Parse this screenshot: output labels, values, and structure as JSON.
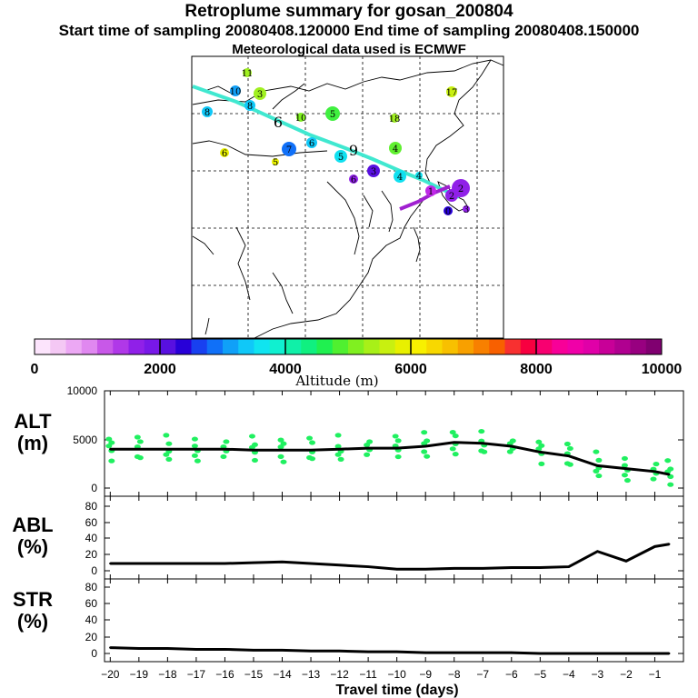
{
  "header": {
    "title": "Retroplume summary for gosan_200804",
    "sampling": "Start time of sampling 20080408.120000     End time of sampling 20080408.150000",
    "met": "Meteorological data used is ECMWF"
  },
  "colorbar": {
    "label": "Altitude (m)",
    "ticks": [
      "0",
      "2000",
      "4000",
      "6000",
      "8000",
      "10000"
    ],
    "colors": [
      "#fce4fc",
      "#f4c8f4",
      "#eca8f4",
      "#e088f0",
      "#c858e8",
      "#b038e8",
      "#9020e8",
      "#7818e8",
      "#5810e0",
      "#2800d8",
      "#1840f0",
      "#1070f8",
      "#10a0f8",
      "#10c8f8",
      "#10e4f0",
      "#10f0d0",
      "#10f0a8",
      "#10f080",
      "#20f050",
      "#50f030",
      "#80f020",
      "#a8f018",
      "#c8f010",
      "#e8f000",
      "#f8f000",
      "#f8d800",
      "#f8c000",
      "#f8a000",
      "#f88000",
      "#f86000",
      "#f83030",
      "#f80040",
      "#f80070",
      "#f80098",
      "#f000a8",
      "#e000a8",
      "#c80098",
      "#b00090",
      "#980080",
      "#800070"
    ]
  },
  "map": {
    "labels": [
      {
        "text": "11",
        "color": "#a0f020"
      },
      {
        "text": "10",
        "color": "#10a0f8"
      },
      {
        "text": "3",
        "color": "#a0f020"
      },
      {
        "text": "8",
        "color": "#10c8f8"
      },
      {
        "text": "8",
        "color": "#10c8f8"
      },
      {
        "text": "6",
        "color": "#000000"
      },
      {
        "text": "10",
        "color": "#80f020"
      },
      {
        "text": "5",
        "color": "#40f040"
      },
      {
        "text": "18",
        "color": "#a0f020"
      },
      {
        "text": "17",
        "color": "#c8f010"
      },
      {
        "text": "6",
        "color": "#e8f000"
      },
      {
        "text": "7",
        "color": "#1070f8"
      },
      {
        "text": "6",
        "color": "#10c8f8"
      },
      {
        "text": "5",
        "color": "#e8f000"
      },
      {
        "text": "5",
        "color": "#10e0f0"
      },
      {
        "text": "9",
        "color": "#000000"
      },
      {
        "text": "4",
        "color": "#60f030"
      },
      {
        "text": "3",
        "color": "#5810e0"
      },
      {
        "text": "4",
        "color": "#10e0f0"
      },
      {
        "text": "4",
        "color": "#10e0f0"
      },
      {
        "text": "2",
        "color": "#9020e8"
      },
      {
        "text": "6",
        "color": "#9020e8"
      },
      {
        "text": "1",
        "color": "#c028e8"
      },
      {
        "text": "2",
        "color": "#9020e8"
      },
      {
        "text": "3",
        "color": "#9020e8"
      },
      {
        "text": "0",
        "color": "#2800d8"
      }
    ]
  },
  "chart_data": [
    {
      "type": "line",
      "name": "altitude",
      "ylabel": "ALT (m)",
      "ylabel_line1": "ALT",
      "ylabel_line2": "(m)",
      "ylim": [
        0,
        10000
      ],
      "yticks": [
        "10000",
        "5000",
        "0"
      ],
      "x": [
        -20,
        -19,
        -18,
        -17,
        -16,
        -15,
        -14,
        -13,
        -12,
        -11,
        -10,
        -9,
        -8,
        -7,
        -6,
        -5,
        -4,
        -3,
        -2,
        -1,
        -0.5
      ],
      "values": [
        4000,
        4000,
        4000,
        4000,
        4000,
        3900,
        3900,
        3900,
        4000,
        4100,
        4100,
        4300,
        4700,
        4600,
        4300,
        3700,
        3300,
        2300,
        2000,
        1700,
        1400
      ]
    },
    {
      "type": "line",
      "name": "abl",
      "ylabel": "ABL (%)",
      "ylabel_line1": "ABL",
      "ylabel_line2": "(%)",
      "ylim": [
        0,
        90
      ],
      "yticks": [
        "80",
        "60",
        "40",
        "20",
        "0"
      ],
      "x": [
        -20,
        -19,
        -18,
        -17,
        -16,
        -15,
        -14,
        -13,
        -12,
        -11,
        -10,
        -9,
        -8,
        -7,
        -6,
        -5,
        -4,
        -3,
        -2,
        -1,
        -0.5
      ],
      "values": [
        9,
        9,
        9,
        9,
        9,
        10,
        11,
        9,
        7,
        5,
        2,
        2,
        3,
        3,
        4,
        4,
        5,
        24,
        12,
        30,
        33
      ]
    },
    {
      "type": "line",
      "name": "str",
      "ylabel": "STR (%)",
      "ylabel_line1": "STR",
      "ylabel_line2": "(%)",
      "ylim": [
        0,
        90
      ],
      "yticks": [
        "80",
        "60",
        "40",
        "20",
        "0"
      ],
      "x": [
        -20,
        -19,
        -18,
        -17,
        -16,
        -15,
        -14,
        -13,
        -12,
        -11,
        -10,
        -9,
        -8,
        -7,
        -6,
        -5,
        -4,
        -3,
        -2,
        -1,
        -0.5
      ],
      "values": [
        7,
        6,
        6,
        5,
        5,
        4,
        4,
        3,
        3,
        2,
        2,
        1,
        1,
        1,
        1,
        0,
        0,
        0,
        0,
        0,
        0
      ]
    }
  ],
  "xaxis": {
    "label": "Travel time (days)",
    "ticks": [
      "-20",
      "-19",
      "-18",
      "-17",
      "-16",
      "-15",
      "-14",
      "-13",
      "-12",
      "-11",
      "-10",
      "-9",
      "-8",
      "-7",
      "-6",
      "-5",
      "-4",
      "-3",
      "-2",
      "-1"
    ]
  }
}
